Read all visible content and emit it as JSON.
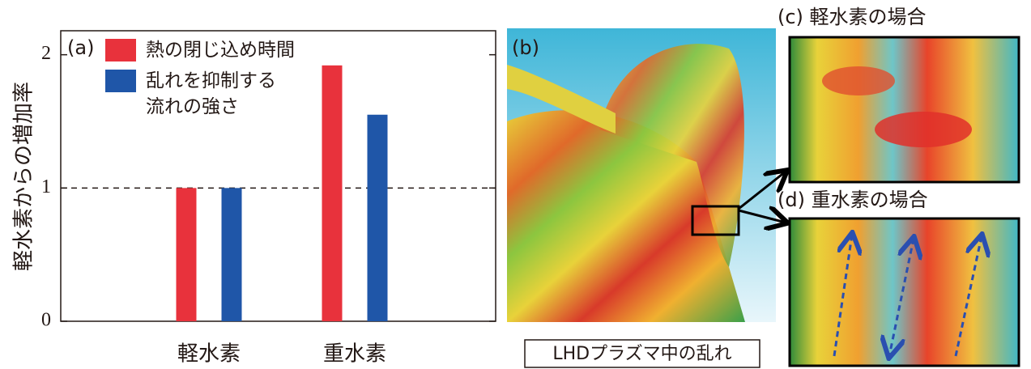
{
  "chart_data": {
    "type": "bar",
    "panel_label": "(a)",
    "ylabel": "軽水素からの増加率",
    "categories": [
      "軽水素",
      "重水素"
    ],
    "series": [
      {
        "name": "熱の閉じ込め時間",
        "color": "#e8323c",
        "values": [
          1,
          1.92
        ]
      },
      {
        "name": "乱れを抑制する\n流れの強さ",
        "color": "#1f56a8",
        "values": [
          1,
          1.55
        ]
      }
    ],
    "ylim": [
      0,
      2.18
    ],
    "yticks": [
      0,
      1,
      2
    ],
    "reference_line": 1
  },
  "panels": [
    {
      "label": "(b)",
      "caption": "LHDプラズマ中の乱れ"
    },
    {
      "title": "(c) 軽水素の場合"
    },
    {
      "title": "(d) 重水素の場合"
    }
  ]
}
